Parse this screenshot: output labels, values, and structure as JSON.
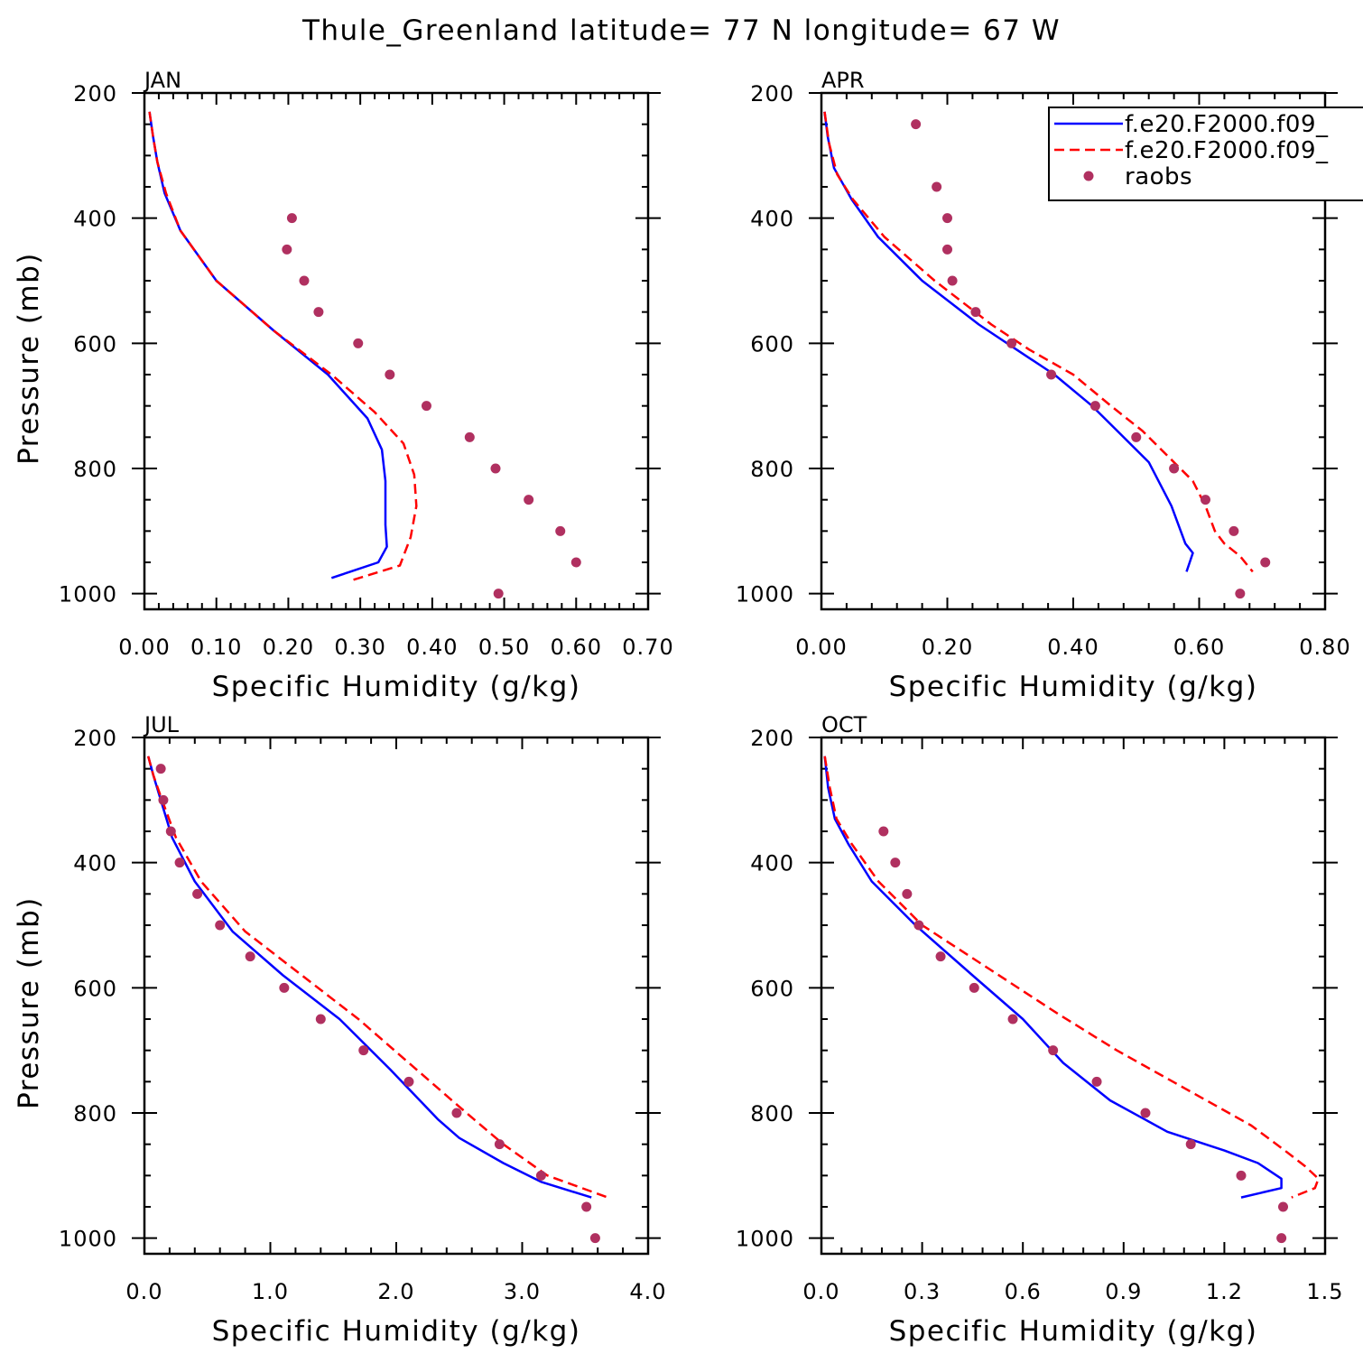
{
  "title": "Thule_Greenland  latitude= 77 N longitude= 67 W",
  "legend": {
    "placement": "top-right of APR panel",
    "entries": [
      {
        "label": "f.e20.F2000.f09_",
        "style": "solid",
        "color": "#0000ff"
      },
      {
        "label": "f.e20.F2000.f09_",
        "style": "dashed",
        "color": "#ff0000"
      },
      {
        "label": "raobs",
        "style": "dot",
        "color": "#b03060"
      }
    ]
  },
  "chart_data": [
    {
      "type": "line",
      "panel": "JAN",
      "xlabel": "Specific Humidity (g/kg)",
      "ylabel": "Pressure (mb)",
      "xlim": [
        0.0,
        0.7
      ],
      "xticks": [
        0.0,
        0.1,
        0.2,
        0.3,
        0.4,
        0.5,
        0.6,
        0.7
      ],
      "xtick_labels": [
        "0.00",
        "0.10",
        "0.20",
        "0.30",
        "0.40",
        "0.50",
        "0.60",
        "0.70"
      ],
      "x_minor": 0.02,
      "ylim": [
        1025,
        200
      ],
      "yticks": [
        200,
        400,
        600,
        800,
        1000
      ],
      "ytick_labels": [
        "200",
        "400",
        "600",
        "800",
        "1000"
      ],
      "y_minor": 50,
      "series": [
        {
          "style": "solid",
          "color": "#0000ff",
          "points": [
            [
              0.007,
              230
            ],
            [
              0.012,
              270
            ],
            [
              0.018,
              310
            ],
            [
              0.028,
              360
            ],
            [
              0.05,
              420
            ],
            [
              0.1,
              500
            ],
            [
              0.18,
              580
            ],
            [
              0.255,
              650
            ],
            [
              0.31,
              720
            ],
            [
              0.33,
              770
            ],
            [
              0.335,
              820
            ],
            [
              0.335,
              890
            ],
            [
              0.337,
              925
            ],
            [
              0.325,
              950
            ],
            [
              0.26,
              975
            ]
          ]
        },
        {
          "style": "dashed",
          "color": "#ff0000",
          "points": [
            [
              0.007,
              230
            ],
            [
              0.012,
              270
            ],
            [
              0.018,
              310
            ],
            [
              0.03,
              360
            ],
            [
              0.05,
              420
            ],
            [
              0.1,
              500
            ],
            [
              0.18,
              580
            ],
            [
              0.26,
              650
            ],
            [
              0.32,
              710
            ],
            [
              0.36,
              760
            ],
            [
              0.375,
              810
            ],
            [
              0.378,
              860
            ],
            [
              0.37,
              910
            ],
            [
              0.355,
              955
            ],
            [
              0.29,
              978
            ]
          ]
        },
        {
          "style": "dot",
          "color": "#b03060",
          "points": [
            [
              0.205,
              400
            ],
            [
              0.198,
              450
            ],
            [
              0.222,
              500
            ],
            [
              0.242,
              550
            ],
            [
              0.297,
              600
            ],
            [
              0.341,
              650
            ],
            [
              0.392,
              700
            ],
            [
              0.452,
              750
            ],
            [
              0.488,
              800
            ],
            [
              0.534,
              850
            ],
            [
              0.578,
              900
            ],
            [
              0.6,
              950
            ],
            [
              0.492,
              1000
            ]
          ]
        }
      ]
    },
    {
      "type": "line",
      "panel": "APR",
      "xlabel": "Specific Humidity (g/kg)",
      "ylabel": "",
      "xlim": [
        0.0,
        0.8
      ],
      "xticks": [
        0.0,
        0.2,
        0.4,
        0.6,
        0.8
      ],
      "xtick_labels": [
        "0.00",
        "0.20",
        "0.40",
        "0.60",
        "0.80"
      ],
      "x_minor": 0.04,
      "ylim": [
        1025,
        200
      ],
      "yticks": [
        200,
        400,
        600,
        800,
        1000
      ],
      "ytick_labels": [
        "200",
        "400",
        "600",
        "800",
        "1000"
      ],
      "y_minor": 50,
      "series": [
        {
          "style": "solid",
          "color": "#0000ff",
          "points": [
            [
              0.005,
              230
            ],
            [
              0.01,
              270
            ],
            [
              0.02,
              320
            ],
            [
              0.048,
              370
            ],
            [
              0.09,
              430
            ],
            [
              0.16,
              500
            ],
            [
              0.25,
              570
            ],
            [
              0.31,
              610
            ],
            [
              0.37,
              650
            ],
            [
              0.43,
              700
            ],
            [
              0.47,
              740
            ],
            [
              0.52,
              790
            ],
            [
              0.556,
              860
            ],
            [
              0.578,
              920
            ],
            [
              0.59,
              935
            ],
            [
              0.58,
              965
            ]
          ]
        },
        {
          "style": "dashed",
          "color": "#ff0000",
          "points": [
            [
              0.005,
              230
            ],
            [
              0.012,
              280
            ],
            [
              0.025,
              330
            ],
            [
              0.05,
              370
            ],
            [
              0.1,
              430
            ],
            [
              0.18,
              500
            ],
            [
              0.27,
              570
            ],
            [
              0.33,
              610
            ],
            [
              0.4,
              650
            ],
            [
              0.46,
              700
            ],
            [
              0.51,
              740
            ],
            [
              0.55,
              780
            ],
            [
              0.59,
              820
            ],
            [
              0.61,
              860
            ],
            [
              0.625,
              900
            ],
            [
              0.64,
              920
            ],
            [
              0.665,
              940
            ],
            [
              0.685,
              965
            ]
          ]
        },
        {
          "style": "dot",
          "color": "#b03060",
          "points": [
            [
              0.15,
              250
            ],
            [
              0.183,
              350
            ],
            [
              0.2,
              400
            ],
            [
              0.2,
              450
            ],
            [
              0.208,
              500
            ],
            [
              0.245,
              550
            ],
            [
              0.302,
              600
            ],
            [
              0.365,
              650
            ],
            [
              0.435,
              700
            ],
            [
              0.5,
              750
            ],
            [
              0.56,
              800
            ],
            [
              0.61,
              850
            ],
            [
              0.655,
              900
            ],
            [
              0.705,
              950
            ],
            [
              0.665,
              1000
            ]
          ]
        }
      ]
    },
    {
      "type": "line",
      "panel": "JUL",
      "xlabel": "Specific Humidity (g/kg)",
      "ylabel": "Pressure (mb)",
      "xlim": [
        0.0,
        4.0
      ],
      "xticks": [
        0.0,
        1.0,
        2.0,
        3.0,
        4.0
      ],
      "xtick_labels": [
        "0.0",
        "1.0",
        "2.0",
        "3.0",
        "4.0"
      ],
      "x_minor": 0.2,
      "ylim": [
        1025,
        200
      ],
      "yticks": [
        200,
        400,
        600,
        800,
        1000
      ],
      "ytick_labels": [
        "200",
        "400",
        "600",
        "800",
        "1000"
      ],
      "y_minor": 50,
      "series": [
        {
          "style": "solid",
          "color": "#0000ff",
          "points": [
            [
              0.03,
              230
            ],
            [
              0.07,
              260
            ],
            [
              0.13,
              300
            ],
            [
              0.22,
              360
            ],
            [
              0.4,
              430
            ],
            [
              0.7,
              510
            ],
            [
              1.1,
              580
            ],
            [
              1.55,
              650
            ],
            [
              1.95,
              730
            ],
            [
              2.33,
              810
            ],
            [
              2.5,
              840
            ],
            [
              2.85,
              880
            ],
            [
              3.15,
              910
            ],
            [
              3.55,
              935
            ]
          ]
        },
        {
          "style": "dashed",
          "color": "#ff0000",
          "points": [
            [
              0.03,
              230
            ],
            [
              0.07,
              260
            ],
            [
              0.14,
              300
            ],
            [
              0.25,
              360
            ],
            [
              0.45,
              430
            ],
            [
              0.8,
              510
            ],
            [
              1.25,
              580
            ],
            [
              1.7,
              650
            ],
            [
              2.1,
              720
            ],
            [
              2.5,
              790
            ],
            [
              2.85,
              850
            ],
            [
              3.2,
              900
            ],
            [
              3.68,
              935
            ]
          ]
        },
        {
          "style": "dot",
          "color": "#b03060",
          "points": [
            [
              0.13,
              250
            ],
            [
              0.15,
              300
            ],
            [
              0.21,
              350
            ],
            [
              0.28,
              400
            ],
            [
              0.42,
              450
            ],
            [
              0.6,
              500
            ],
            [
              0.84,
              550
            ],
            [
              1.11,
              600
            ],
            [
              1.4,
              650
            ],
            [
              1.74,
              700
            ],
            [
              2.1,
              750
            ],
            [
              2.48,
              800
            ],
            [
              2.82,
              850
            ],
            [
              3.15,
              900
            ],
            [
              3.51,
              950
            ],
            [
              3.58,
              1000
            ]
          ]
        }
      ]
    },
    {
      "type": "line",
      "panel": "OCT",
      "xlabel": "Specific Humidity (g/kg)",
      "ylabel": "",
      "xlim": [
        0.0,
        1.5
      ],
      "xticks": [
        0.0,
        0.3,
        0.6,
        0.9,
        1.2,
        1.5
      ],
      "xtick_labels": [
        "0.0",
        "0.3",
        "0.6",
        "0.9",
        "1.2",
        "1.5"
      ],
      "x_minor": 0.06,
      "ylim": [
        1025,
        200
      ],
      "yticks": [
        200,
        400,
        600,
        800,
        1000
      ],
      "ytick_labels": [
        "200",
        "400",
        "600",
        "800",
        "1000"
      ],
      "y_minor": 50,
      "series": [
        {
          "style": "solid",
          "color": "#0000ff",
          "points": [
            [
              0.01,
              230
            ],
            [
              0.02,
              280
            ],
            [
              0.04,
              330
            ],
            [
              0.08,
              370
            ],
            [
              0.15,
              430
            ],
            [
              0.28,
              500
            ],
            [
              0.45,
              580
            ],
            [
              0.6,
              650
            ],
            [
              0.72,
              720
            ],
            [
              0.86,
              780
            ],
            [
              1.03,
              830
            ],
            [
              1.2,
              860
            ],
            [
              1.3,
              880
            ],
            [
              1.37,
              905
            ],
            [
              1.37,
              920
            ],
            [
              1.25,
              935
            ]
          ]
        },
        {
          "style": "dashed",
          "color": "#ff0000",
          "points": [
            [
              0.01,
              230
            ],
            [
              0.025,
              280
            ],
            [
              0.045,
              330
            ],
            [
              0.09,
              370
            ],
            [
              0.17,
              430
            ],
            [
              0.3,
              500
            ],
            [
              0.5,
              570
            ],
            [
              0.7,
              640
            ],
            [
              0.88,
              700
            ],
            [
              1.08,
              760
            ],
            [
              1.28,
              820
            ],
            [
              1.38,
              860
            ],
            [
              1.44,
              885
            ],
            [
              1.48,
              905
            ],
            [
              1.47,
              920
            ],
            [
              1.4,
              935
            ]
          ]
        },
        {
          "style": "dot",
          "color": "#b03060",
          "points": [
            [
              0.185,
              350
            ],
            [
              0.22,
              400
            ],
            [
              0.255,
              450
            ],
            [
              0.29,
              500
            ],
            [
              0.355,
              550
            ],
            [
              0.455,
              600
            ],
            [
              0.57,
              650
            ],
            [
              0.69,
              700
            ],
            [
              0.82,
              750
            ],
            [
              0.965,
              800
            ],
            [
              1.1,
              850
            ],
            [
              1.25,
              900
            ],
            [
              1.375,
              950
            ],
            [
              1.37,
              1000
            ]
          ]
        }
      ]
    }
  ]
}
